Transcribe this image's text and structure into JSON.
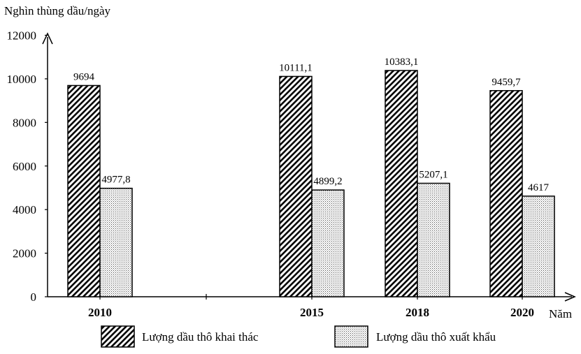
{
  "chart_data": {
    "type": "bar",
    "ylabel": "Nghìn thùng dầu/ngày",
    "xlabel": "Năm",
    "ylim": [
      0,
      12000
    ],
    "yticks": [
      0,
      2000,
      4000,
      6000,
      8000,
      10000,
      12000
    ],
    "categories": [
      "2010",
      "2015",
      "2018",
      "2020"
    ],
    "series": [
      {
        "name": "Lượng dầu thô khai thác",
        "values": [
          9694,
          10111.1,
          10383.1,
          9459.7
        ],
        "labels": [
          "9694",
          "10111,1",
          "10383,1",
          "9459,7"
        ],
        "pattern": "diagonal-hatch"
      },
      {
        "name": "Lượng dầu thô xuất khẩu",
        "values": [
          4977.8,
          4899.2,
          5207.1,
          4617
        ],
        "labels": [
          "4977,8",
          "4899,2",
          "5207,1",
          "4617"
        ],
        "pattern": "dots"
      }
    ],
    "grid": false,
    "legend": "bottom"
  }
}
